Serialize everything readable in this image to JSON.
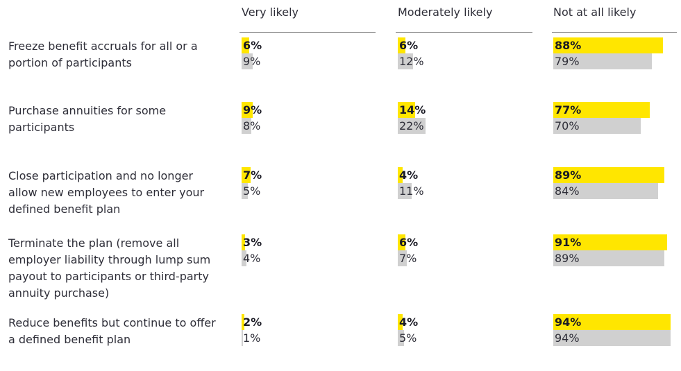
{
  "chart_data": {
    "type": "paired-bar",
    "columns": [
      "Very likely",
      "Moderately likely",
      "Not at all likely"
    ],
    "categories": [
      "Freeze benefit accruals for all or a portion of participants",
      "Purchase annuities for some participants",
      "Close participation and no longer allow new employees to enter your defined benefit plan",
      "Terminate the plan (remove all employer liability through lump sum payout to participants or third-party annuity purchase)",
      "Reduce benefits but continue to offer a defined benefit plan"
    ],
    "xlim": [
      0,
      100
    ],
    "series": [
      {
        "color": "#ffe600",
        "values": [
          [
            6,
            6,
            88
          ],
          [
            9,
            14,
            77
          ],
          [
            7,
            4,
            89
          ],
          [
            3,
            6,
            91
          ],
          [
            2,
            4,
            94
          ]
        ],
        "value_labels": [
          [
            "6%",
            "6%",
            "88%"
          ],
          [
            "9%",
            "14%",
            "77%"
          ],
          [
            "7%",
            "4%",
            "89%"
          ],
          [
            "3%",
            "6%",
            "91%"
          ],
          [
            "2%",
            "4%",
            "94%"
          ]
        ]
      },
      {
        "color": "#d0d0d0",
        "values": [
          [
            9,
            12,
            79
          ],
          [
            8,
            22,
            70
          ],
          [
            5,
            11,
            84
          ],
          [
            4,
            7,
            89
          ],
          [
            1,
            5,
            94
          ]
        ],
        "value_labels": [
          [
            "9%",
            "12%",
            "79%"
          ],
          [
            "8%",
            "22%",
            "70%"
          ],
          [
            "5%",
            "11%",
            "84%"
          ],
          [
            "4%",
            "7%",
            "89%"
          ],
          [
            "1%",
            "5%",
            "94%"
          ]
        ]
      }
    ]
  }
}
